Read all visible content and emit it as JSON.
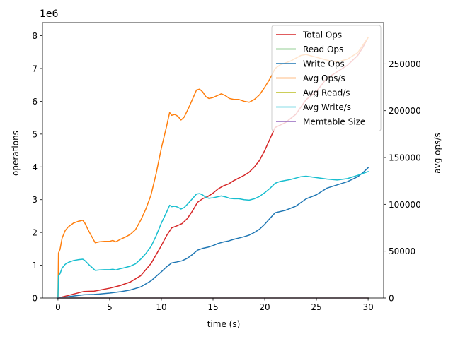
{
  "chart_data": {
    "type": "line",
    "xlabel": "time (s)",
    "ylabel_left": "operations",
    "ylabel_right": "avg ops/s",
    "left_offset_label": "1e6",
    "xlim": [
      -1.5,
      31.5
    ],
    "ylim_left": [
      0,
      8400000
    ],
    "ylim_right": [
      0,
      294000
    ],
    "x_ticks": [
      0,
      5,
      10,
      15,
      20,
      25,
      30
    ],
    "x_tick_labels": [
      "0",
      "5",
      "10",
      "15",
      "20",
      "25",
      "30"
    ],
    "y_left_ticks": [
      0,
      1000000,
      2000000,
      3000000,
      4000000,
      5000000,
      6000000,
      7000000,
      8000000
    ],
    "y_left_tick_labels": [
      "0",
      "1",
      "2",
      "3",
      "4",
      "5",
      "6",
      "7",
      "8"
    ],
    "y_right_ticks": [
      0,
      50000,
      100000,
      150000,
      200000,
      250000
    ],
    "y_right_tick_labels": [
      "0",
      "50000",
      "100000",
      "150000",
      "200000",
      "250000"
    ],
    "legend_position": "top-right",
    "series": [
      {
        "name": "Total Ops",
        "color": "#d62728",
        "axis": "left",
        "points": [
          [
            0,
            0
          ],
          [
            1,
            80000
          ],
          [
            2,
            160000
          ],
          [
            2.5,
            200000
          ],
          [
            3.5,
            210000
          ],
          [
            4,
            240000
          ],
          [
            5,
            300000
          ],
          [
            6,
            380000
          ],
          [
            7,
            490000
          ],
          [
            8,
            680000
          ],
          [
            9,
            1050000
          ],
          [
            10,
            1600000
          ],
          [
            10.5,
            1900000
          ],
          [
            11,
            2140000
          ],
          [
            11.5,
            2200000
          ],
          [
            12,
            2270000
          ],
          [
            12.5,
            2420000
          ],
          [
            13,
            2650000
          ],
          [
            13.5,
            2920000
          ],
          [
            14,
            3030000
          ],
          [
            14.5,
            3100000
          ],
          [
            15,
            3200000
          ],
          [
            15.5,
            3330000
          ],
          [
            16,
            3420000
          ],
          [
            16.5,
            3480000
          ],
          [
            17,
            3580000
          ],
          [
            17.5,
            3660000
          ],
          [
            18,
            3740000
          ],
          [
            18.5,
            3840000
          ],
          [
            19,
            4000000
          ],
          [
            19.5,
            4200000
          ],
          [
            20,
            4500000
          ],
          [
            20.5,
            4850000
          ],
          [
            21,
            5200000
          ],
          [
            22,
            5350000
          ],
          [
            23,
            5600000
          ],
          [
            24,
            6050000
          ],
          [
            25,
            6300000
          ],
          [
            26,
            6700000
          ],
          [
            27,
            6900000
          ],
          [
            28,
            7100000
          ],
          [
            29,
            7400000
          ],
          [
            29.5,
            7650000
          ],
          [
            30,
            7950000
          ]
        ]
      },
      {
        "name": "Read Ops",
        "color": "#2ca02c",
        "axis": "left",
        "points": [
          [
            0,
            0
          ],
          [
            30,
            0
          ]
        ]
      },
      {
        "name": "Write Ops",
        "color": "#1f77b4",
        "axis": "left",
        "points": [
          [
            0,
            0
          ],
          [
            1,
            40000
          ],
          [
            2,
            80000
          ],
          [
            2.5,
            100000
          ],
          [
            3.5,
            110000
          ],
          [
            4,
            120000
          ],
          [
            5,
            150000
          ],
          [
            6,
            190000
          ],
          [
            7,
            245000
          ],
          [
            8,
            340000
          ],
          [
            9,
            525000
          ],
          [
            10,
            800000
          ],
          [
            10.5,
            950000
          ],
          [
            11,
            1070000
          ],
          [
            11.5,
            1100000
          ],
          [
            12,
            1135000
          ],
          [
            12.5,
            1210000
          ],
          [
            13,
            1325000
          ],
          [
            13.5,
            1460000
          ],
          [
            14,
            1515000
          ],
          [
            14.5,
            1550000
          ],
          [
            15,
            1600000
          ],
          [
            15.5,
            1665000
          ],
          [
            16,
            1710000
          ],
          [
            16.5,
            1740000
          ],
          [
            17,
            1790000
          ],
          [
            17.5,
            1830000
          ],
          [
            18,
            1870000
          ],
          [
            18.5,
            1920000
          ],
          [
            19,
            2000000
          ],
          [
            19.5,
            2100000
          ],
          [
            20,
            2250000
          ],
          [
            20.5,
            2425000
          ],
          [
            21,
            2600000
          ],
          [
            22,
            2675000
          ],
          [
            23,
            2800000
          ],
          [
            24,
            3025000
          ],
          [
            25,
            3150000
          ],
          [
            26,
            3350000
          ],
          [
            27,
            3450000
          ],
          [
            28,
            3550000
          ],
          [
            29,
            3700000
          ],
          [
            29.5,
            3825000
          ],
          [
            30,
            3975000
          ]
        ]
      },
      {
        "name": "Avg Ops/s",
        "color": "#ff7f0e",
        "axis": "right",
        "points": [
          [
            0,
            0
          ],
          [
            0.05,
            48000
          ],
          [
            0.2,
            52000
          ],
          [
            0.4,
            64000
          ],
          [
            0.7,
            72000
          ],
          [
            1,
            76000
          ],
          [
            1.5,
            80000
          ],
          [
            2,
            82000
          ],
          [
            2.4,
            83000
          ],
          [
            2.6,
            80000
          ],
          [
            3,
            71000
          ],
          [
            3.4,
            63000
          ],
          [
            3.6,
            59000
          ],
          [
            4,
            60000
          ],
          [
            4.5,
            60500
          ],
          [
            5,
            60500
          ],
          [
            5.3,
            61500
          ],
          [
            5.6,
            60000
          ],
          [
            6,
            62500
          ],
          [
            6.5,
            65000
          ],
          [
            7,
            68000
          ],
          [
            7.5,
            73000
          ],
          [
            8,
            83000
          ],
          [
            8.5,
            95000
          ],
          [
            9,
            110000
          ],
          [
            9.5,
            133000
          ],
          [
            10,
            160000
          ],
          [
            10.5,
            183000
          ],
          [
            10.8,
            198000
          ],
          [
            11,
            195000
          ],
          [
            11.3,
            196000
          ],
          [
            11.6,
            194000
          ],
          [
            11.9,
            190000
          ],
          [
            12.2,
            193000
          ],
          [
            12.6,
            202000
          ],
          [
            13,
            212000
          ],
          [
            13.4,
            222000
          ],
          [
            13.7,
            223000
          ],
          [
            14,
            220000
          ],
          [
            14.3,
            215000
          ],
          [
            14.6,
            213000
          ],
          [
            15,
            214000
          ],
          [
            15.4,
            216000
          ],
          [
            15.8,
            218000
          ],
          [
            16.2,
            216000
          ],
          [
            16.6,
            213000
          ],
          [
            17,
            212000
          ],
          [
            17.5,
            212000
          ],
          [
            18,
            210000
          ],
          [
            18.5,
            209000
          ],
          [
            19,
            212000
          ],
          [
            19.5,
            217000
          ],
          [
            20,
            225000
          ],
          [
            20.5,
            234000
          ],
          [
            21,
            245000
          ],
          [
            21.5,
            249000
          ],
          [
            22,
            251000
          ],
          [
            22.5,
            253000
          ],
          [
            23,
            256000
          ],
          [
            23.5,
            259000
          ],
          [
            24,
            260000
          ],
          [
            25,
            257000
          ],
          [
            26,
            254000
          ],
          [
            27,
            252000
          ],
          [
            28,
            255000
          ],
          [
            29,
            262000
          ],
          [
            29.5,
            270000
          ],
          [
            30,
            278000
          ]
        ]
      },
      {
        "name": "Avg Read/s",
        "color": "#bcbd22",
        "axis": "right",
        "points": [
          [
            0,
            0
          ],
          [
            30,
            0
          ]
        ]
      },
      {
        "name": "Avg Write/s",
        "color": "#17becf",
        "axis": "right",
        "points": [
          [
            0,
            0
          ],
          [
            0.05,
            24000
          ],
          [
            0.2,
            26000
          ],
          [
            0.4,
            32000
          ],
          [
            0.7,
            36000
          ],
          [
            1,
            38000
          ],
          [
            1.5,
            40000
          ],
          [
            2,
            41000
          ],
          [
            2.4,
            41500
          ],
          [
            2.6,
            40000
          ],
          [
            3,
            35500
          ],
          [
            3.4,
            31500
          ],
          [
            3.6,
            29500
          ],
          [
            4,
            30000
          ],
          [
            4.5,
            30250
          ],
          [
            5,
            30250
          ],
          [
            5.3,
            30750
          ],
          [
            5.6,
            30000
          ],
          [
            6,
            31250
          ],
          [
            6.5,
            32500
          ],
          [
            7,
            34000
          ],
          [
            7.5,
            36500
          ],
          [
            8,
            41500
          ],
          [
            8.5,
            47500
          ],
          [
            9,
            55000
          ],
          [
            9.5,
            66500
          ],
          [
            10,
            80000
          ],
          [
            10.5,
            91500
          ],
          [
            10.8,
            99000
          ],
          [
            11,
            97500
          ],
          [
            11.3,
            98000
          ],
          [
            11.6,
            97000
          ],
          [
            11.9,
            95000
          ],
          [
            12.2,
            96500
          ],
          [
            12.6,
            101000
          ],
          [
            13,
            106000
          ],
          [
            13.4,
            111000
          ],
          [
            13.7,
            111500
          ],
          [
            14,
            110000
          ],
          [
            14.3,
            107500
          ],
          [
            14.6,
            106500
          ],
          [
            15,
            107000
          ],
          [
            15.4,
            108000
          ],
          [
            15.8,
            109000
          ],
          [
            16.2,
            108000
          ],
          [
            16.6,
            106500
          ],
          [
            17,
            106000
          ],
          [
            17.5,
            106000
          ],
          [
            18,
            105000
          ],
          [
            18.5,
            104500
          ],
          [
            19,
            106000
          ],
          [
            19.5,
            108500
          ],
          [
            20,
            112500
          ],
          [
            20.5,
            117000
          ],
          [
            21,
            122500
          ],
          [
            21.5,
            124500
          ],
          [
            22,
            125500
          ],
          [
            22.5,
            126500
          ],
          [
            23,
            128000
          ],
          [
            23.5,
            129500
          ],
          [
            24,
            130000
          ],
          [
            25,
            128500
          ],
          [
            26,
            127000
          ],
          [
            27,
            126000
          ],
          [
            28,
            127500
          ],
          [
            29,
            131000
          ],
          [
            29.5,
            133000
          ],
          [
            30,
            135000
          ]
        ]
      },
      {
        "name": "Memtable Size",
        "color": "#9467bd",
        "axis": "left",
        "points": [
          [
            0,
            0
          ],
          [
            30,
            0
          ]
        ]
      }
    ]
  }
}
